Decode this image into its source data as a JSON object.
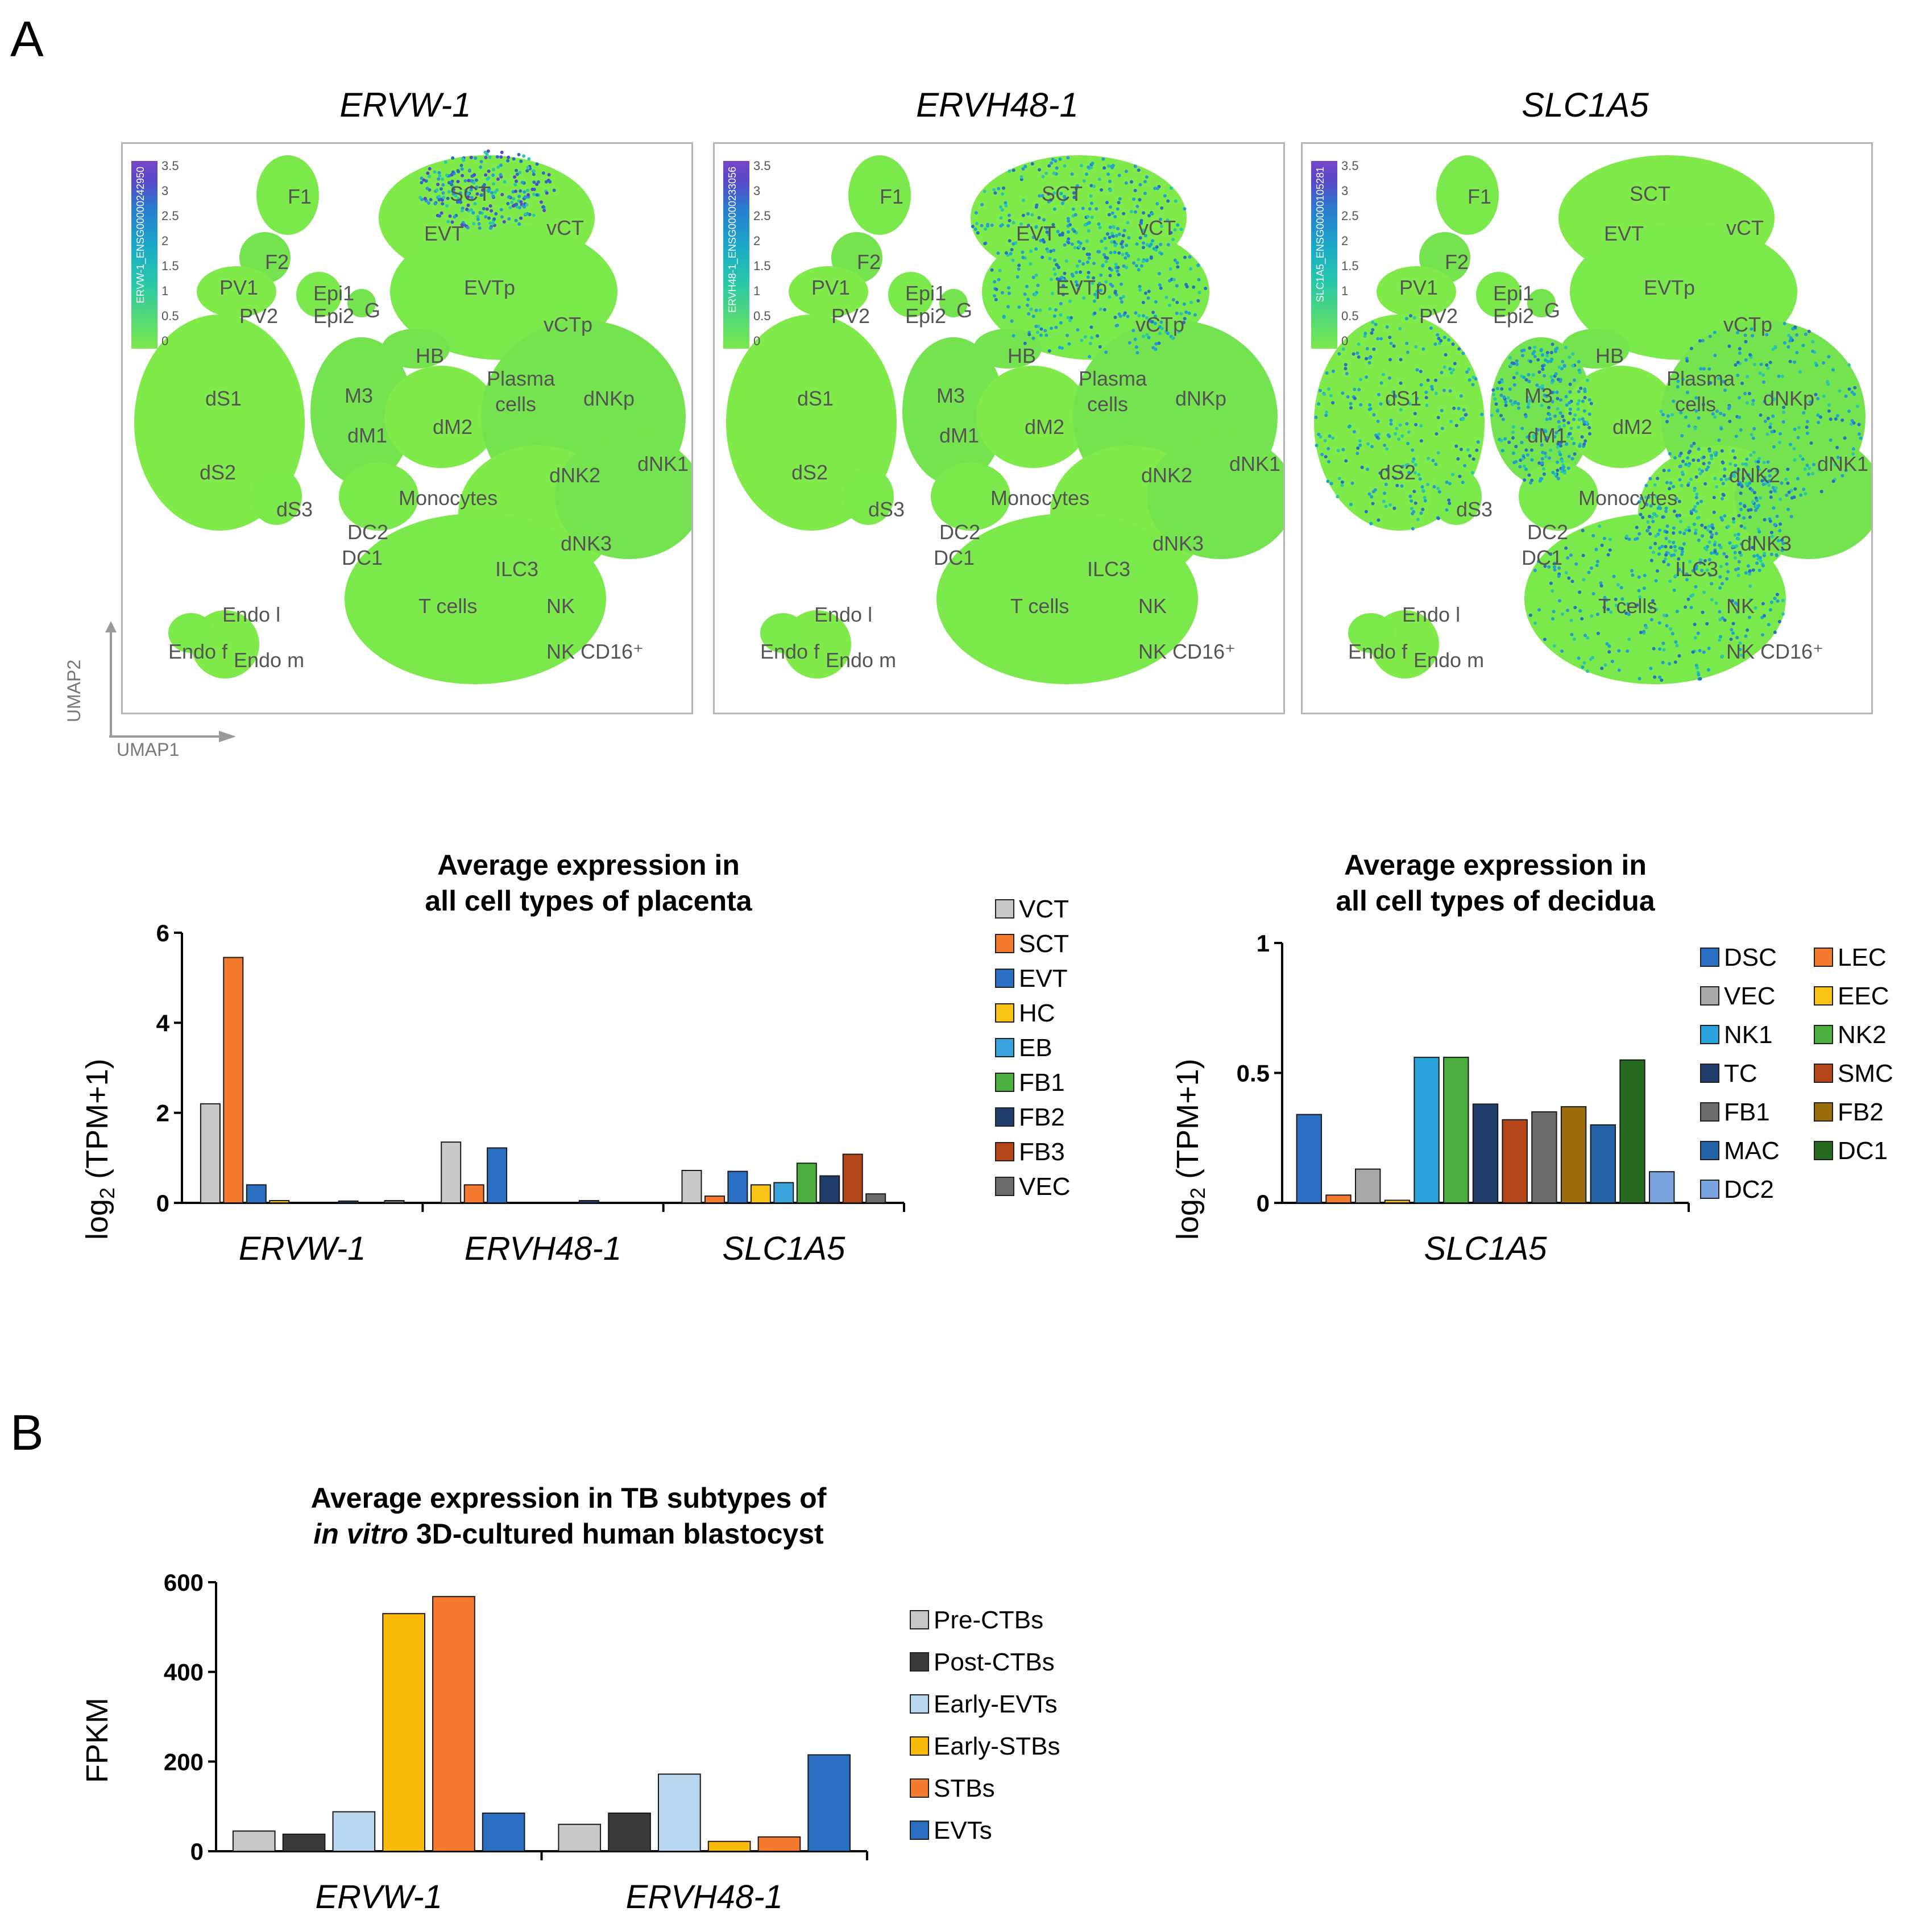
{
  "panels": {
    "a": "A",
    "b": "B"
  },
  "umap": {
    "axis_y": "UMAP2",
    "axis_x": "UMAP1",
    "color_ticks": [
      "3.5",
      "3",
      "2.5",
      "2",
      "1.5",
      "1",
      "0.5",
      "0"
    ],
    "plots": [
      {
        "title": "ERVW-1",
        "colorbar_label": "ERVW-1_ENSG00000242950"
      },
      {
        "title": "ERVH48-1",
        "colorbar_label": "ERVH48-1_ENSG00000233056"
      },
      {
        "title": "SLC1A5",
        "colorbar_label": "SLC1A5_ENSG00000105281"
      }
    ],
    "clusters": [
      "F1",
      "F2",
      "PV1",
      "PV2",
      "Epi1",
      "Epi2",
      "G",
      "EVT",
      "SCT",
      "vCT",
      "EVTp",
      "vCTp",
      "HB",
      "Plasma",
      "cells",
      "M3",
      "dM1",
      "dM2",
      "dS1",
      "dS2",
      "dS3",
      "dNKp",
      "dNK1",
      "dNK2",
      "dNK3",
      "Monocytes",
      "DC2",
      "DC1",
      "ILC3",
      "T cells",
      "NK",
      "NK CD16⁺",
      "Endo l",
      "Endo f",
      "Endo m"
    ]
  },
  "colors": {
    "VCT": "#c8c8c8",
    "SCT": "#f47a30",
    "EVT": "#2a6fc2",
    "HC": "#f9c316",
    "EB": "#3aa3dd",
    "FB1": "#4caf40",
    "FB2": "#1f3d6b",
    "FB3": "#b5461a",
    "VEC": "#6b6b6b",
    "DSC": "#2a6fc2",
    "LEC": "#f47a30",
    "dVEC": "#a9a9a9",
    "EEC": "#f9c316",
    "NK1": "#2aa3dd",
    "NK2": "#4caf40",
    "TC": "#1f3d6b",
    "SMC": "#b5461a",
    "dFB1": "#6b6b6b",
    "dFB2": "#9c6d0c",
    "MAC": "#2462a6",
    "DC1": "#276b22",
    "DC2": "#7aa5dc",
    "Pre-CTBs": "#c8c8c8",
    "Post-CTBs": "#3a3a3a",
    "Early-EVTs": "#b9d7ee",
    "Early-STBs": "#fbbb0a",
    "STBs": "#f47a30",
    "EVTs": "#2a6fc2"
  },
  "chart_data": [
    {
      "type": "bar",
      "title": "Average expression in all cell types of placenta",
      "ylabel": "log2 (TPM+1)",
      "ylim": [
        0,
        6
      ],
      "yticks": [
        "0",
        "2",
        "4",
        "6"
      ],
      "categories": [
        "ERVW-1",
        "ERVH48-1",
        "SLC1A5"
      ],
      "series": [
        {
          "name": "VCT",
          "values": [
            2.2,
            1.35,
            0.72
          ]
        },
        {
          "name": "SCT",
          "values": [
            5.45,
            0.4,
            0.15
          ]
        },
        {
          "name": "EVT",
          "values": [
            0.4,
            1.22,
            0.7
          ]
        },
        {
          "name": "HC",
          "values": [
            0.05,
            0,
            0.4
          ]
        },
        {
          "name": "EB",
          "values": [
            0,
            0,
            0.45
          ]
        },
        {
          "name": "FB1",
          "values": [
            0,
            0,
            0.88
          ]
        },
        {
          "name": "FB2",
          "values": [
            0.04,
            0.05,
            0.6
          ]
        },
        {
          "name": "FB3",
          "values": [
            0,
            0,
            1.08
          ]
        },
        {
          "name": "VEC",
          "values": [
            0.05,
            0,
            0.2
          ]
        }
      ]
    },
    {
      "type": "bar",
      "title": "Average expression in all cell types of decidua",
      "ylabel": "log2 (TPM+1)",
      "ylim": [
        0,
        1
      ],
      "yticks": [
        "0",
        "0.5",
        "1"
      ],
      "categories": [
        "SLC1A5"
      ],
      "series": [
        {
          "name": "DSC",
          "values": [
            0.34
          ]
        },
        {
          "name": "LEC",
          "values": [
            0.03
          ]
        },
        {
          "name": "VEC",
          "values": [
            0.13
          ]
        },
        {
          "name": "EEC",
          "values": [
            0.01
          ]
        },
        {
          "name": "NK1",
          "values": [
            0.56
          ]
        },
        {
          "name": "NK2",
          "values": [
            0.56
          ]
        },
        {
          "name": "TC",
          "values": [
            0.38
          ]
        },
        {
          "name": "SMC",
          "values": [
            0.32
          ]
        },
        {
          "name": "FB1",
          "values": [
            0.35
          ]
        },
        {
          "name": "FB2",
          "values": [
            0.37
          ]
        },
        {
          "name": "MAC",
          "values": [
            0.3
          ]
        },
        {
          "name": "DC1",
          "values": [
            0.55
          ]
        },
        {
          "name": "DC2",
          "values": [
            0.12
          ]
        }
      ]
    },
    {
      "type": "bar",
      "title": "Average expression in TB subtypes of in vitro 3D-cultured human blastocyst",
      "title_line1": "Average expression in TB subtypes of",
      "title_line2_italic": "in vitro",
      "title_line2_rest": " 3D-cultured human blastocyst",
      "ylabel": "FPKM",
      "ylim": [
        0,
        600
      ],
      "yticks": [
        "0",
        "200",
        "400",
        "600"
      ],
      "categories": [
        "ERVW-1",
        "ERVH48-1"
      ],
      "series": [
        {
          "name": "Pre-CTBs",
          "values": [
            45,
            60
          ]
        },
        {
          "name": "Post-CTBs",
          "values": [
            38,
            85
          ]
        },
        {
          "name": "Early-EVTs",
          "values": [
            88,
            172
          ]
        },
        {
          "name": "Early-STBs",
          "values": [
            530,
            22
          ]
        },
        {
          "name": "STBs",
          "values": [
            568,
            32
          ]
        },
        {
          "name": "EVTs",
          "values": [
            85,
            215
          ]
        }
      ]
    }
  ]
}
